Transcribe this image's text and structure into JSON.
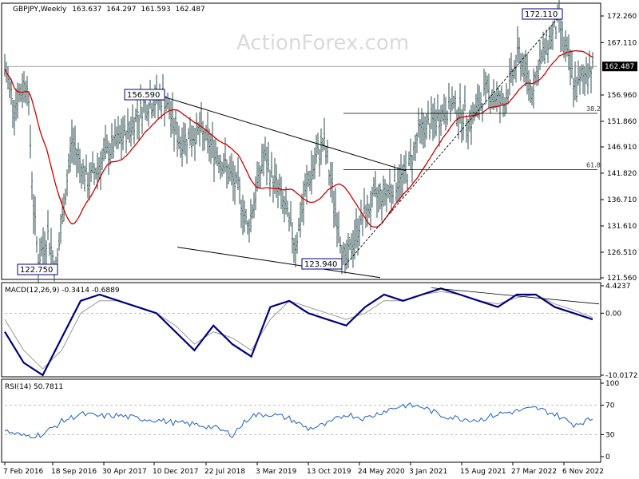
{
  "chart_data": [
    {
      "type": "bar",
      "title": "GBPJPY,Weekly",
      "ohlc_header": {
        "open": "163.637",
        "high": "164.297",
        "low": "161.593",
        "close": "162.487"
      },
      "watermark": "ActionForex.com",
      "current_price_label": "162.487",
      "y_ticks": [
        "172.260",
        "167.110",
        "162.487",
        "156.960",
        "151.860",
        "146.910",
        "141.820",
        "136.710",
        "131.610",
        "126.510",
        "121.560"
      ],
      "ylim": [
        121.56,
        174.5
      ],
      "x_ticks": [
        "7 Feb 2016",
        "18 Sep 2016",
        "30 Apr 2017",
        "10 Dec 2017",
        "22 Jul 2018",
        "3 Mar 2019",
        "13 Oct 2019",
        "24 May 2020",
        "3 Jan 2021",
        "15 Aug 2021",
        "27 Mar 2022",
        "6 Nov 2022"
      ],
      "annotations": [
        "122.750",
        "156.590",
        "123.940",
        "172.110"
      ],
      "fib_levels": [
        {
          "label": "38.2",
          "value": 153.4
        },
        {
          "label": "61.8",
          "value": 142.5
        }
      ],
      "key_points": [
        {
          "date": "7 Feb 2016",
          "close": 162
        },
        {
          "date": "Oct 2016",
          "close": 125
        },
        {
          "date": "Dec 2017",
          "close": 152
        },
        {
          "date": "Mar 2019",
          "close": 143
        },
        {
          "date": "Sep 2019",
          "close": 128
        },
        {
          "date": "Dec 2019",
          "close": 143
        },
        {
          "date": "Mar 2020",
          "close": 127
        },
        {
          "date": "Jan 2021",
          "close": 150
        },
        {
          "date": "Feb 2022",
          "close": 154
        },
        {
          "date": "Oct 2022",
          "close": 170
        },
        {
          "date": "Feb 2023",
          "close": 162.487
        }
      ],
      "colors": {
        "price_bars": "#2f4f4f",
        "sma": "#cc0000",
        "trendline": "#000000",
        "guide": "#888888"
      }
    },
    {
      "type": "line",
      "title": "MACD(12,26,9) -0.3414 -0.6889",
      "y_ticks": [
        "4.4237",
        "0.00",
        "-10.0172"
      ],
      "ylim": [
        -10.0172,
        4.4237
      ],
      "series": [
        {
          "name": "MACD",
          "values": [
            -3,
            -8,
            -10,
            -4,
            2,
            3,
            2,
            1,
            0,
            -3,
            -6,
            -2,
            -5,
            -7,
            1,
            2,
            0,
            -1,
            -2,
            1,
            3,
            2,
            3,
            4,
            3,
            2,
            1,
            3,
            3,
            1,
            0,
            -1
          ]
        },
        {
          "name": "Signal",
          "values": [
            -1,
            -6,
            -9,
            -6,
            0,
            2,
            2,
            1,
            0,
            -2,
            -5,
            -3,
            -4,
            -6,
            -1,
            2,
            1,
            0,
            -1,
            0,
            2,
            2,
            3,
            3.5,
            3,
            2,
            1.5,
            2.5,
            3,
            1.5,
            0.5,
            -0.7
          ]
        }
      ],
      "colors": {
        "macd": "#000080",
        "signal": "#999999"
      }
    },
    {
      "type": "line",
      "title": "RSI(14) 50.7811",
      "y_ticks": [
        "100",
        "70",
        "30",
        "0"
      ],
      "ylim": [
        0,
        100
      ],
      "series": [
        {
          "name": "RSI",
          "values": [
            35,
            28,
            30,
            48,
            58,
            55,
            56,
            52,
            50,
            46,
            44,
            40,
            30,
            56,
            58,
            52,
            38,
            44,
            58,
            52,
            62,
            70,
            68,
            56,
            52,
            50,
            58,
            62,
            66,
            58,
            44,
            51
          ]
        }
      ],
      "colors": {
        "rsi": "#2060c0"
      }
    }
  ]
}
